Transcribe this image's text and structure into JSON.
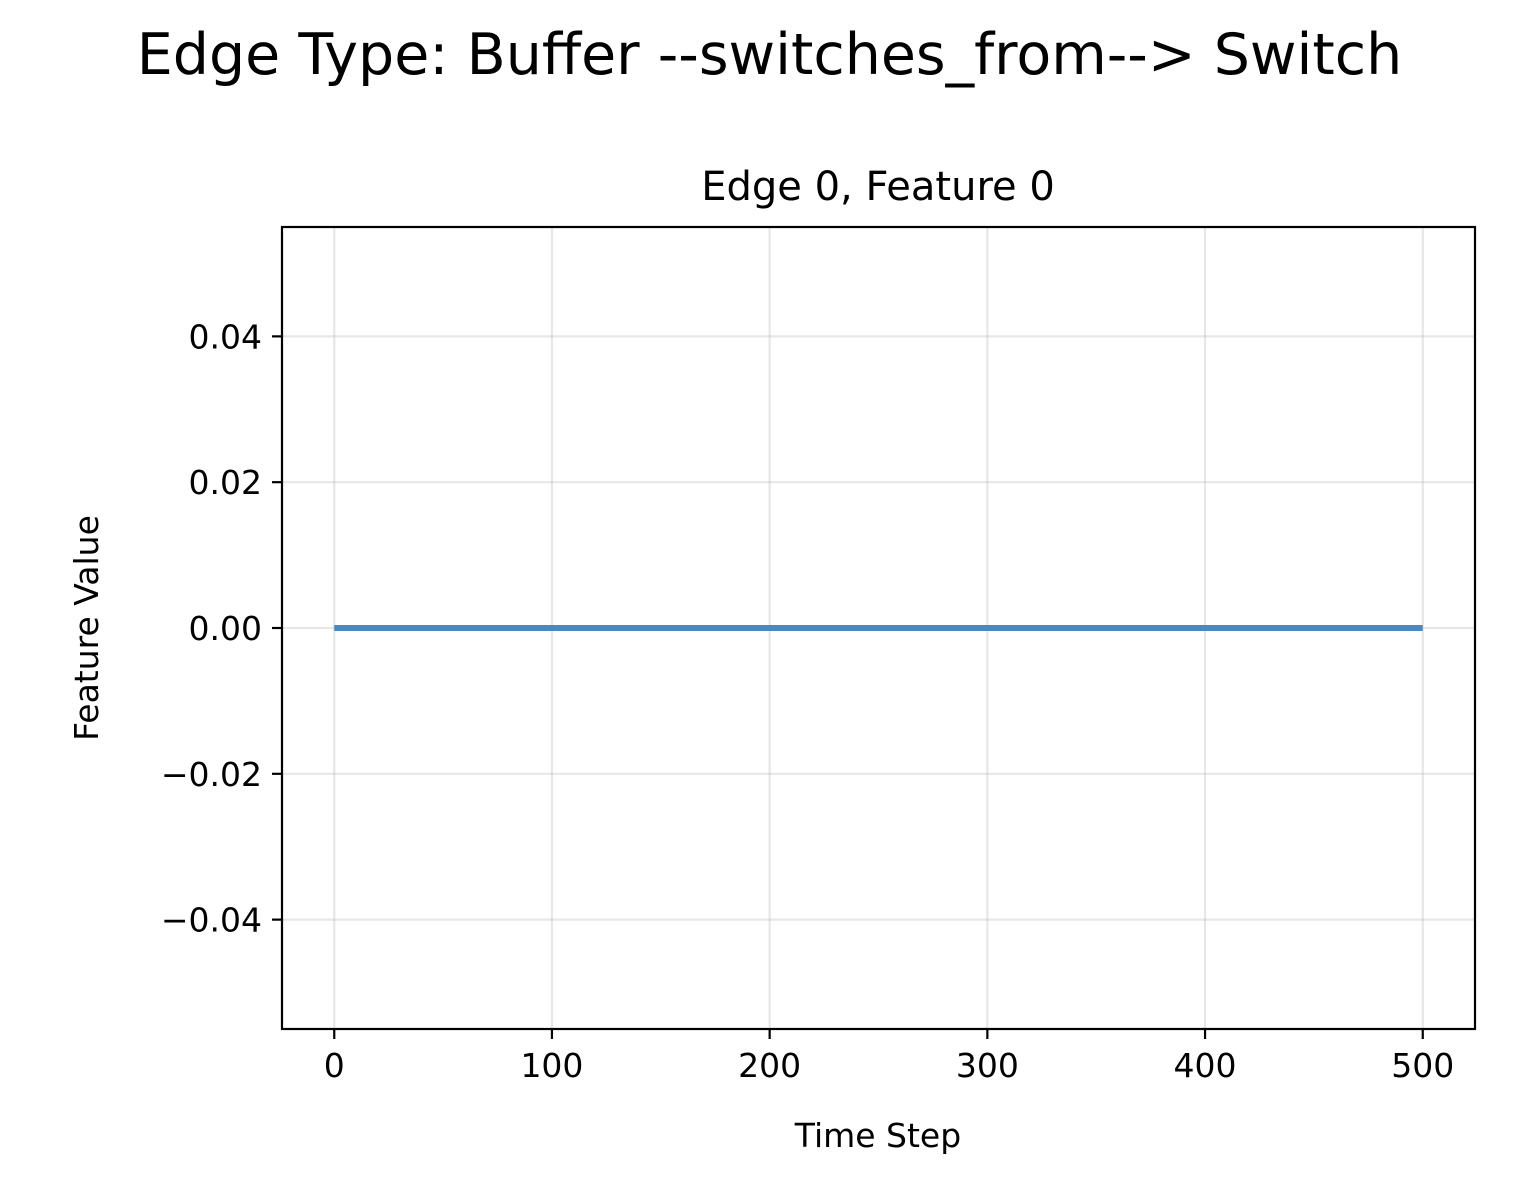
{
  "figure": {
    "suptitle": "Edge Type: Buffer --switches_from--> Switch"
  },
  "chart_data": {
    "type": "line",
    "title": "Edge 0, Feature 0",
    "xlabel": "Time Step",
    "ylabel": "Feature Value",
    "xlim": [
      -24,
      524
    ],
    "ylim": [
      -0.055,
      0.055
    ],
    "xticks": [
      0,
      100,
      200,
      300,
      400,
      500
    ],
    "xtick_labels": [
      "0",
      "100",
      "200",
      "300",
      "400",
      "500"
    ],
    "yticks": [
      -0.04,
      -0.02,
      0.0,
      0.02,
      0.04
    ],
    "ytick_labels": [
      "−0.04",
      "−0.02",
      "0.00",
      "0.02",
      "0.04"
    ],
    "grid": true,
    "series": [
      {
        "x": [
          0,
          500
        ],
        "values": [
          0.0,
          0.0
        ],
        "color": "#4a89bf"
      }
    ]
  }
}
